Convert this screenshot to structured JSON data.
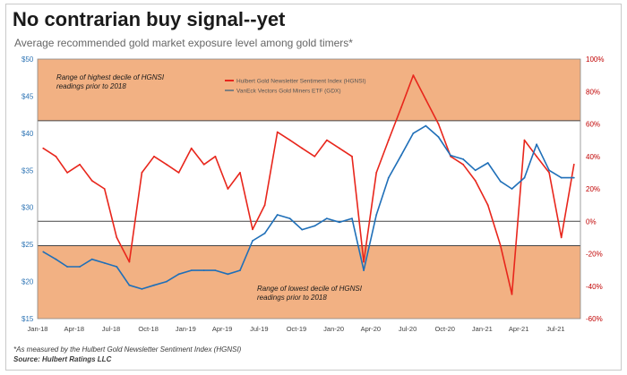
{
  "title": "No contrarian buy signal--yet",
  "subtitle": "Average recommended gold market exposure level among gold timers*",
  "footnote": "*As measured by the Hulbert Gold Newsletter Sentiment Index (HGNSI)",
  "source": "Source: Hulbert Ratings LLC",
  "colors": {
    "hgnsi": "#e8261c",
    "gdx": "#1f6fb8",
    "band": "#f2b183",
    "left_axis": "#2f75b5",
    "right_axis": "#c00000"
  },
  "chart_data": {
    "type": "line",
    "left_axis": {
      "label": "",
      "range": [
        15,
        50
      ],
      "ticks": [
        "$50",
        "$45",
        "$40",
        "$35",
        "$30",
        "$25",
        "$20",
        "$15"
      ]
    },
    "right_axis": {
      "label": "",
      "range": [
        -60,
        100
      ],
      "ticks": [
        "100%",
        "80%",
        "60%",
        "40%",
        "20%",
        "0%",
        "-20%",
        "-40%",
        "-60%"
      ]
    },
    "x_ticks": [
      "Jan-18",
      "Apr-18",
      "Jul-18",
      "Oct-18",
      "Jan-19",
      "Apr-19",
      "Jul-19",
      "Oct-19",
      "Jan-20",
      "Apr-20",
      "Jul-20",
      "Oct-20",
      "Jan-21",
      "Apr-21",
      "Jul-21"
    ],
    "bands": [
      {
        "label": "Range of highest decile of HGNSI readings prior to 2018",
        "range_pct": [
          62,
          100
        ]
      },
      {
        "label": "Range of lowest decile of HGNSI readings prior to 2018",
        "range_pct": [
          -60,
          -15
        ]
      }
    ],
    "reference_line_pct": 0,
    "series": [
      {
        "name": "Hulbert Gold Newsletter Sentiment Index (HGNSI)",
        "axis": "right",
        "x": [
          "2018-01",
          "2018-02",
          "2018-03",
          "2018-04",
          "2018-05",
          "2018-06",
          "2018-07",
          "2018-08",
          "2018-09",
          "2018-10",
          "2018-11",
          "2018-12",
          "2019-01",
          "2019-02",
          "2019-03",
          "2019-04",
          "2019-05",
          "2019-06",
          "2019-07",
          "2019-08",
          "2019-09",
          "2019-10",
          "2019-11",
          "2019-12",
          "2020-01",
          "2020-02",
          "2020-03",
          "2020-04",
          "2020-05",
          "2020-06",
          "2020-07",
          "2020-08",
          "2020-09",
          "2020-10",
          "2020-11",
          "2020-12",
          "2021-01",
          "2021-02",
          "2021-03",
          "2021-04",
          "2021-05",
          "2021-06",
          "2021-07",
          "2021-08"
        ],
        "values": [
          45,
          40,
          30,
          35,
          25,
          20,
          -10,
          -25,
          30,
          40,
          35,
          30,
          45,
          35,
          40,
          20,
          30,
          -5,
          10,
          55,
          50,
          45,
          40,
          50,
          45,
          40,
          -25,
          30,
          50,
          70,
          90,
          75,
          60,
          40,
          35,
          25,
          10,
          -15,
          -45,
          50,
          40,
          30,
          -10,
          35
        ]
      },
      {
        "name": "VanEck Vectors Gold Miners ETF (GDX)",
        "axis": "left",
        "x": [
          "2018-01",
          "2018-02",
          "2018-03",
          "2018-04",
          "2018-05",
          "2018-06",
          "2018-07",
          "2018-08",
          "2018-09",
          "2018-10",
          "2018-11",
          "2018-12",
          "2019-01",
          "2019-02",
          "2019-03",
          "2019-04",
          "2019-05",
          "2019-06",
          "2019-07",
          "2019-08",
          "2019-09",
          "2019-10",
          "2019-11",
          "2019-12",
          "2020-01",
          "2020-02",
          "2020-03",
          "2020-04",
          "2020-05",
          "2020-06",
          "2020-07",
          "2020-08",
          "2020-09",
          "2020-10",
          "2020-11",
          "2020-12",
          "2021-01",
          "2021-02",
          "2021-03",
          "2021-04",
          "2021-05",
          "2021-06",
          "2021-07",
          "2021-08"
        ],
        "values": [
          24,
          23,
          22,
          22,
          23,
          22.5,
          22,
          19.5,
          19,
          19.5,
          20,
          21,
          21.5,
          21.5,
          21.5,
          21,
          21.5,
          25.5,
          26.5,
          29,
          28.5,
          27,
          27.5,
          28.5,
          28,
          28.5,
          21.5,
          29,
          34,
          37,
          40,
          41,
          39.5,
          37,
          36.5,
          35,
          36,
          33.5,
          32.5,
          34,
          38.5,
          35,
          34,
          34
        ]
      }
    ],
    "legend": [
      "Hulbert Gold Newsletter Sentiment Index (HGNSI)",
      "VanEck Vectors Gold Miners ETF (GDX)"
    ],
    "legend_position": "top-center",
    "grid": false
  }
}
